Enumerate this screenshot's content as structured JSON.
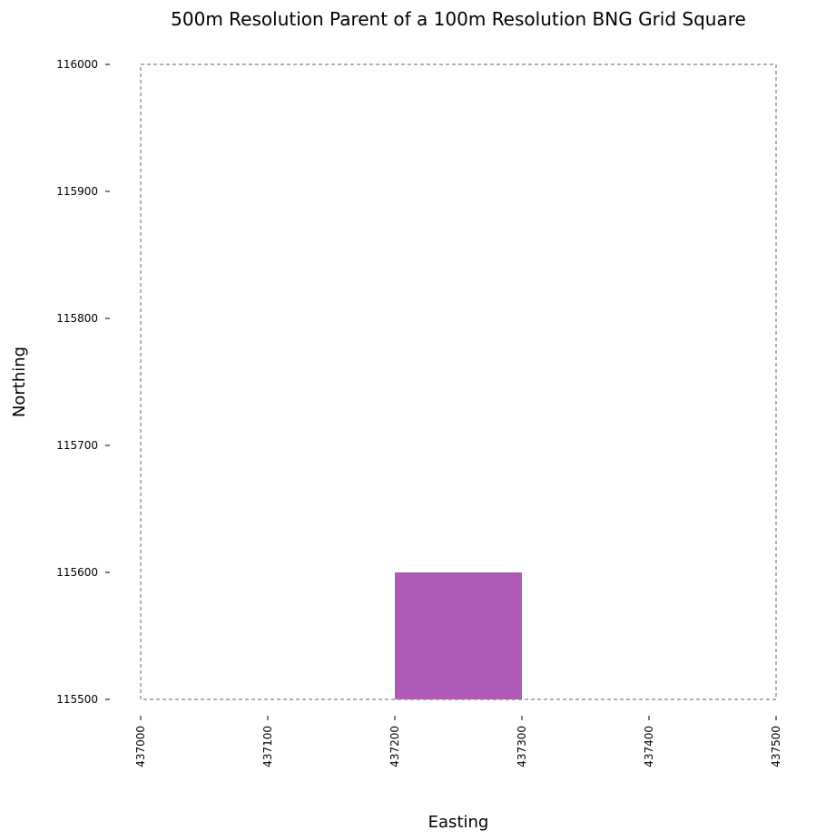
{
  "chart_data": {
    "type": "scatter",
    "title": "500m Resolution Parent of a 100m Resolution BNG Grid Square",
    "xlabel": "Easting",
    "ylabel": "Northing",
    "xlim": [
      437000,
      437500
    ],
    "ylim": [
      115500,
      116000
    ],
    "x_ticks": [
      "437000",
      "437100",
      "437200",
      "437300",
      "437400",
      "437500"
    ],
    "y_ticks": [
      "115500",
      "115600",
      "115700",
      "115800",
      "115900",
      "116000"
    ],
    "parent_square": {
      "x0": 437000,
      "y0": 115500,
      "x1": 437500,
      "y1": 116000,
      "style": "dashed",
      "color": "#808080"
    },
    "child_square": {
      "x0": 437200,
      "y0": 115500,
      "x1": 437300,
      "y1": 115600,
      "color": "#b05ab8"
    },
    "grid": false,
    "legend": false
  }
}
